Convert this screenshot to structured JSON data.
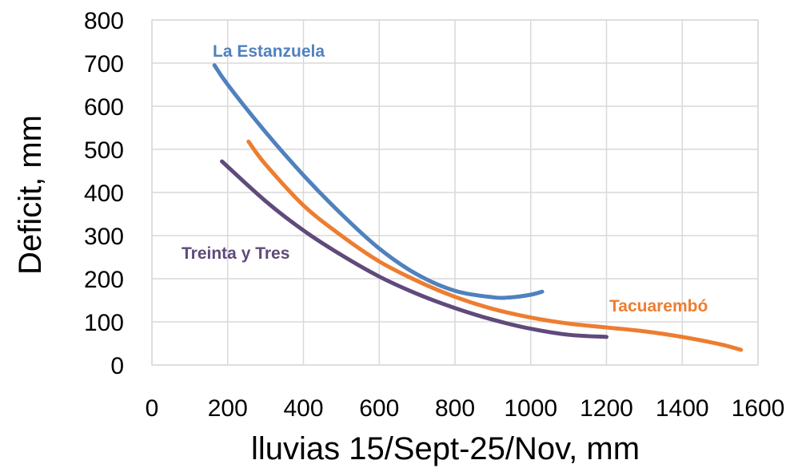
{
  "chart_data": {
    "type": "line",
    "xlabel": "lluvias 15/Sept-25/Nov, mm",
    "ylabel": "Deficit, mm",
    "xlim": [
      0,
      1600
    ],
    "ylim": [
      0,
      800
    ],
    "xticks": [
      "0",
      "200",
      "400",
      "600",
      "800",
      "1000",
      "1200",
      "1400",
      "1600"
    ],
    "yticks": [
      "0",
      "100",
      "200",
      "300",
      "400",
      "500",
      "600",
      "700",
      "800"
    ],
    "grid": true,
    "series": [
      {
        "name": "La Estanzuela",
        "color": "#4f81bd",
        "x": [
          165,
          200,
          300,
          400,
          500,
          600,
          700,
          800,
          900,
          950,
          1000,
          1030
        ],
        "y": [
          695,
          650,
          540,
          440,
          350,
          270,
          210,
          172,
          157,
          157,
          163,
          170
        ]
      },
      {
        "name": "Tacuarembó",
        "color": "#ed7d31",
        "x": [
          255,
          300,
          400,
          500,
          600,
          700,
          800,
          900,
          1000,
          1100,
          1200,
          1300,
          1400,
          1500,
          1555
        ],
        "y": [
          518,
          465,
          370,
          300,
          240,
          195,
          158,
          130,
          110,
          96,
          87,
          78,
          65,
          48,
          35
        ]
      },
      {
        "name": "Treinta y Tres",
        "color": "#604a7b",
        "x": [
          185,
          300,
          400,
          500,
          600,
          700,
          800,
          900,
          1000,
          1100,
          1200
        ],
        "y": [
          472,
          380,
          312,
          255,
          205,
          165,
          132,
          105,
          84,
          70,
          65
        ]
      }
    ]
  }
}
